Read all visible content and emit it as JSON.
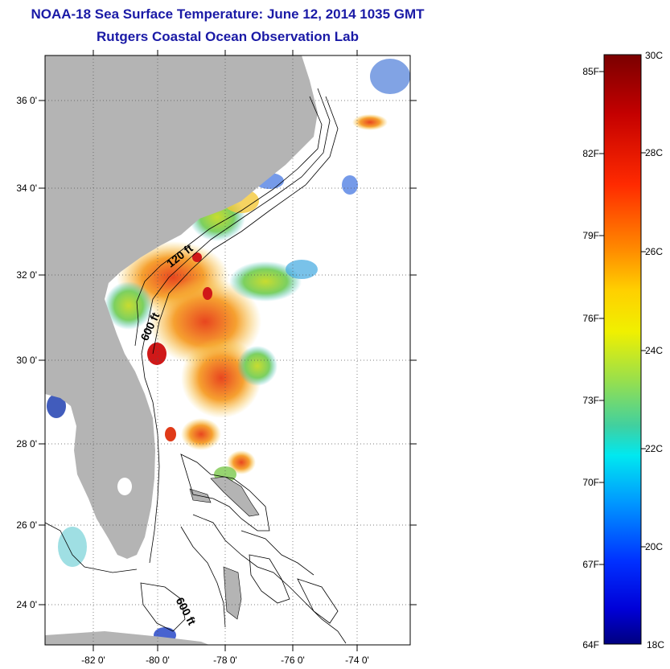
{
  "title": {
    "line1": "NOAA-18 Sea Surface Temperature:  June 12, 2014 1035 GMT",
    "line2": "Rutgers Coastal Ocean Observation Lab"
  },
  "map": {
    "lat_ticks": [
      "36 0'",
      "34 0'",
      "32 0'",
      "30 0'",
      "28 0'",
      "26 0'",
      "24 0'"
    ],
    "lon_ticks": [
      "-82 0'",
      "-80 0'",
      "-78 0'",
      "-76 0'",
      "-74 0'"
    ],
    "contour_labels": [
      "120 ft",
      "600 ft",
      "600 ft"
    ],
    "colors": {
      "land": "#b4b4b4",
      "ocean_nodata": "#ffffff",
      "grid": "#555555"
    }
  },
  "colorbar": {
    "celsius_labels": [
      "30C",
      "28C",
      "26C",
      "24C",
      "22C",
      "20C",
      "18C"
    ],
    "fahrenheit_labels": [
      "85F",
      "82F",
      "79F",
      "76F",
      "73F",
      "70F",
      "67F",
      "64F"
    ],
    "range_c": [
      18,
      30
    ]
  }
}
